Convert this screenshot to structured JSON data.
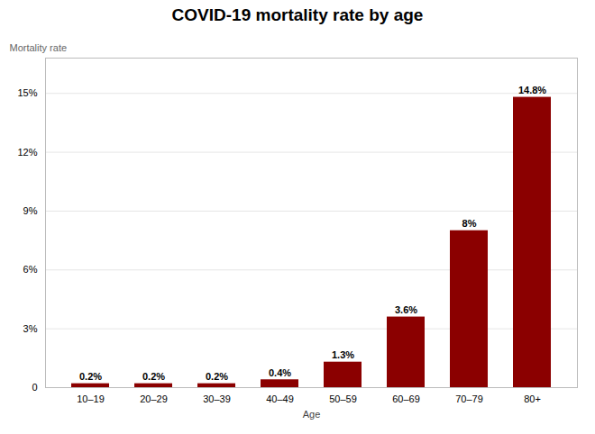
{
  "chart_data": {
    "type": "bar",
    "title": "COVID-19 mortality rate by age",
    "xlabel": "Age",
    "ylabel": "Mortality rate",
    "categories": [
      "10–19",
      "20–29",
      "30–39",
      "40–49",
      "50–59",
      "60–69",
      "70–79",
      "80+"
    ],
    "values": [
      0.2,
      0.2,
      0.2,
      0.4,
      1.3,
      3.6,
      8.0,
      14.8
    ],
    "value_labels": [
      "0.2%",
      "0.2%",
      "0.2%",
      "0.4%",
      "1.3%",
      "3.6%",
      "8%",
      "14.8%"
    ],
    "data_labels": true,
    "color": "#8B0000",
    "ylim": [
      0,
      16.8
    ],
    "yticks": [
      0,
      {
        "value": 3,
        "label": "3%"
      },
      {
        "value": 6,
        "label": "6%"
      },
      {
        "value": 9,
        "label": "9%"
      },
      {
        "value": 12,
        "label": "12%"
      },
      {
        "value": 15,
        "label": "15%"
      }
    ],
    "grid": true
  }
}
